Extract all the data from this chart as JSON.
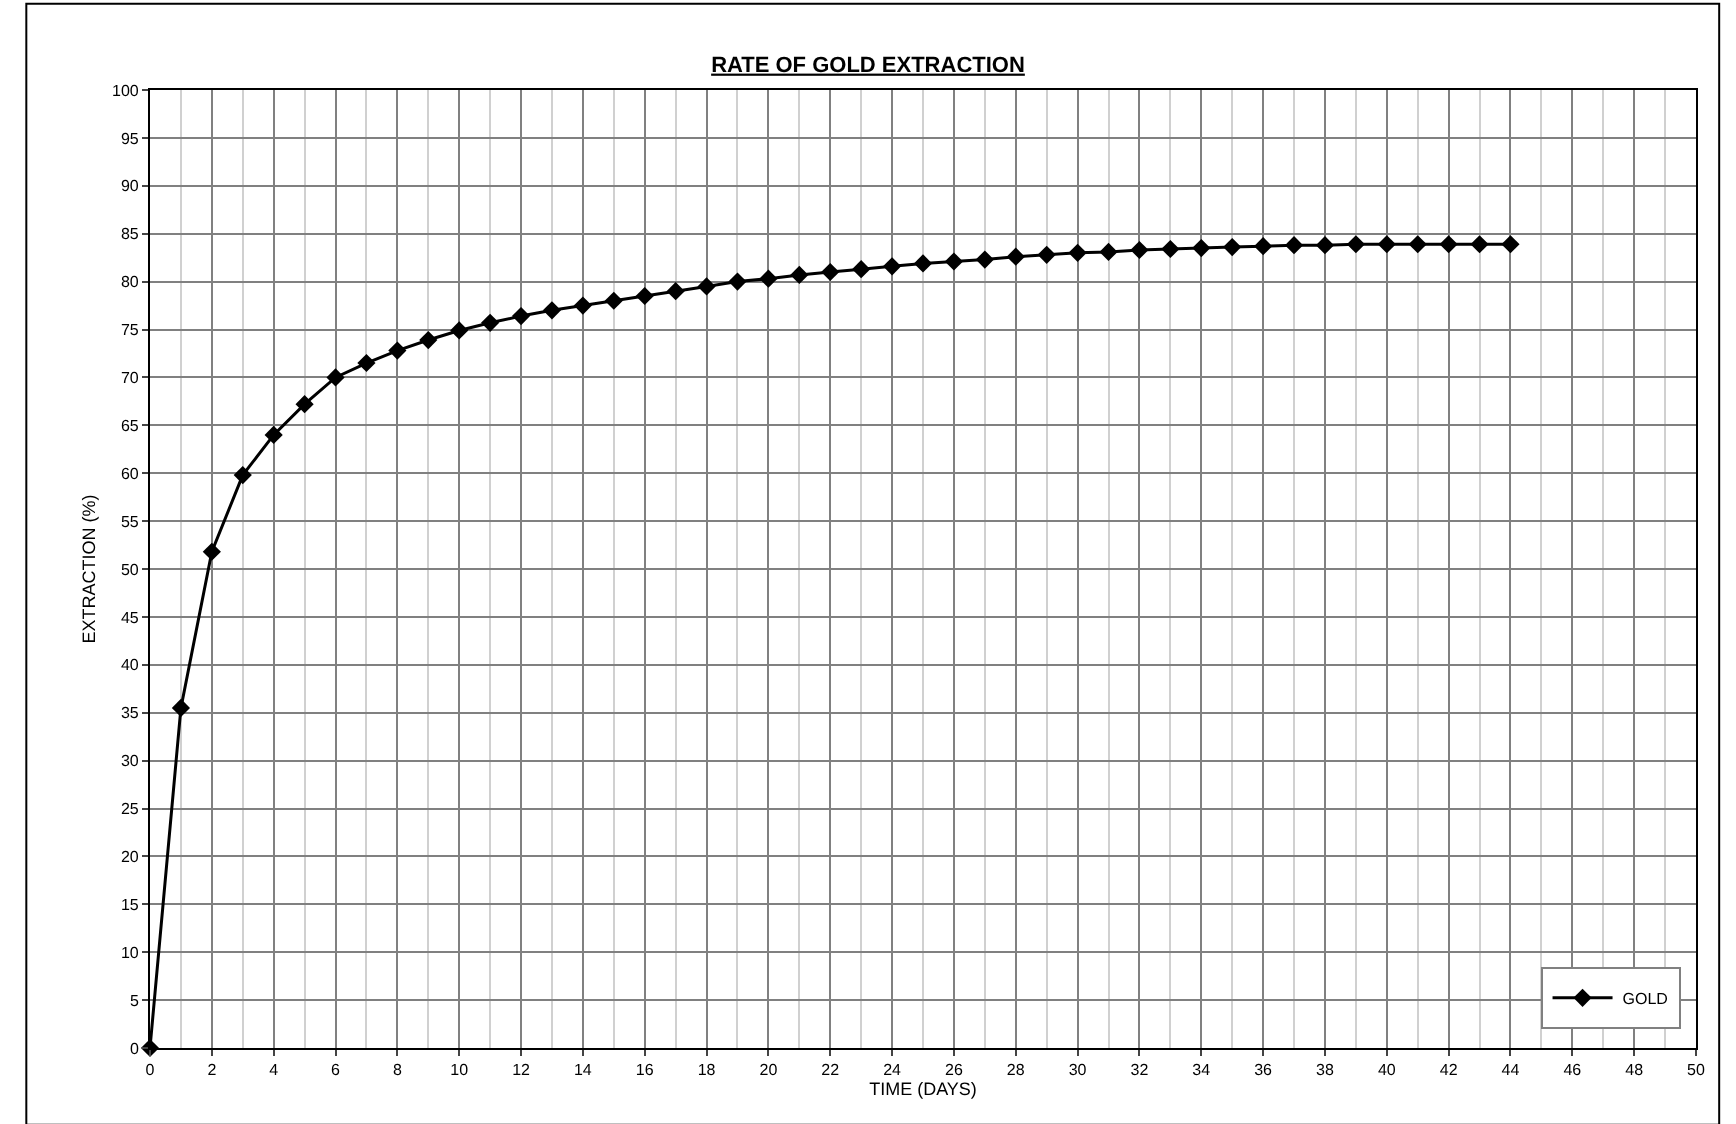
{
  "chart_data": {
    "type": "line",
    "title": "RATE OF GOLD EXTRACTION",
    "xlabel": "TIME (DAYS)",
    "ylabel": "EXTRACTION (%)",
    "x": [
      0,
      1,
      2,
      3,
      4,
      5,
      6,
      7,
      8,
      9,
      10,
      11,
      12,
      13,
      14,
      15,
      16,
      17,
      18,
      19,
      20,
      21,
      22,
      23,
      24,
      25,
      26,
      27,
      28,
      29,
      30,
      31,
      32,
      33,
      34,
      35,
      36,
      37,
      38,
      39,
      40,
      41,
      42,
      43,
      44
    ],
    "series": [
      {
        "name": "GOLD",
        "color": "#000000",
        "values": [
          0,
          35.5,
          51.8,
          59.8,
          64,
          67.2,
          70,
          71.5,
          72.8,
          73.9,
          74.9,
          75.7,
          76.4,
          77.0,
          77.5,
          78.0,
          78.5,
          79.0,
          79.5,
          80.0,
          80.3,
          80.7,
          81.0,
          81.3,
          81.6,
          81.9,
          82.1,
          82.3,
          82.6,
          82.8,
          83.0,
          83.1,
          83.3,
          83.4,
          83.5,
          83.6,
          83.7,
          83.8,
          83.8,
          83.9,
          83.9,
          83.9,
          83.9,
          83.9,
          83.9
        ]
      }
    ],
    "xlim": [
      0,
      50
    ],
    "xticks": [
      0,
      2,
      4,
      6,
      8,
      10,
      12,
      14,
      16,
      18,
      20,
      22,
      24,
      26,
      28,
      30,
      32,
      34,
      36,
      38,
      40,
      42,
      44,
      46,
      48,
      50
    ],
    "ylim": [
      0,
      100
    ],
    "yticks": [
      0,
      5,
      10,
      15,
      20,
      25,
      30,
      35,
      40,
      45,
      50,
      55,
      60,
      65,
      70,
      75,
      80,
      85,
      90,
      95,
      100
    ],
    "grid": true,
    "legend": "bottom right",
    "marker": "diamond",
    "line_style": "solid"
  }
}
